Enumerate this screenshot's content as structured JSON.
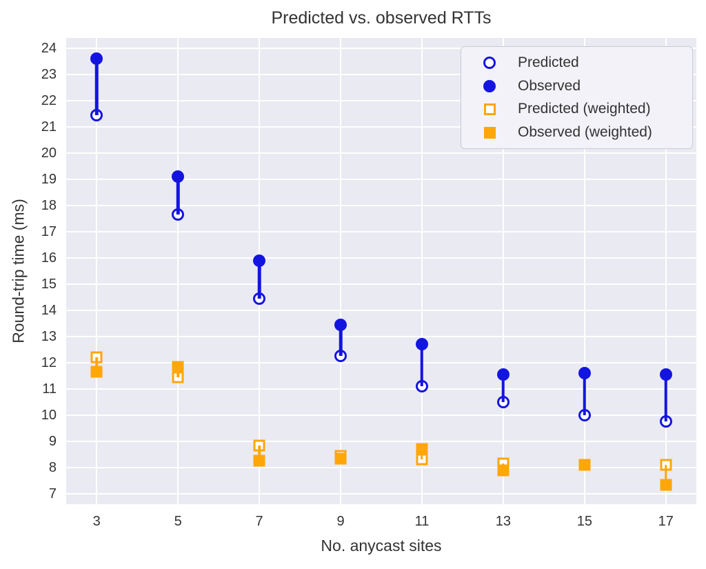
{
  "title": "Predicted vs. observed RTTs",
  "colors": {
    "blue": "#1414e1",
    "orange": "#ffa608",
    "plot_bg": "#eaeaf2",
    "grid": "#ffffff",
    "text": "#333333",
    "open_marker_fill": "#ffffff",
    "legend_bg": "#f2f2f8",
    "legend_border": "#cacad2"
  },
  "chart_data": {
    "type": "scatter",
    "title": "Predicted vs. observed RTTs",
    "xlabel": "No. anycast sites",
    "ylabel": "Round-trip time (ms)",
    "x": [
      3,
      5,
      7,
      9,
      11,
      13,
      15,
      17
    ],
    "xticks": [
      "3",
      "5",
      "7",
      "9",
      "11",
      "13",
      "15",
      "17"
    ],
    "yticks": [
      7,
      8,
      9,
      10,
      11,
      12,
      13,
      14,
      15,
      16,
      17,
      18,
      19,
      20,
      21,
      22,
      23,
      24
    ],
    "xlim": [
      2.25,
      17.75
    ],
    "ylim": [
      6.6,
      24.4
    ],
    "grid": true,
    "legend_position": "upper right",
    "series": [
      {
        "name": "Predicted",
        "marker": "open-circle",
        "color": "#1414e1",
        "values": [
          21.45,
          17.65,
          14.45,
          12.25,
          11.1,
          10.5,
          10.0,
          9.75
        ]
      },
      {
        "name": "Observed",
        "marker": "filled-circle",
        "color": "#1414e1",
        "values": [
          23.6,
          19.1,
          15.9,
          13.45,
          12.7,
          11.55,
          11.6,
          11.55
        ]
      },
      {
        "name": "Predicted (weighted)",
        "marker": "open-square",
        "color": "#ffa608",
        "values": [
          12.2,
          11.45,
          8.85,
          8.45,
          8.3,
          8.15,
          8.1,
          8.1
        ]
      },
      {
        "name": "Observed (weighted)",
        "marker": "filled-square",
        "color": "#ffa608",
        "values": [
          11.65,
          11.85,
          8.25,
          8.35,
          8.7,
          7.9,
          8.1,
          7.35
        ]
      }
    ],
    "stem_pairs": [
      [
        0,
        1
      ],
      [
        2,
        3
      ]
    ]
  }
}
